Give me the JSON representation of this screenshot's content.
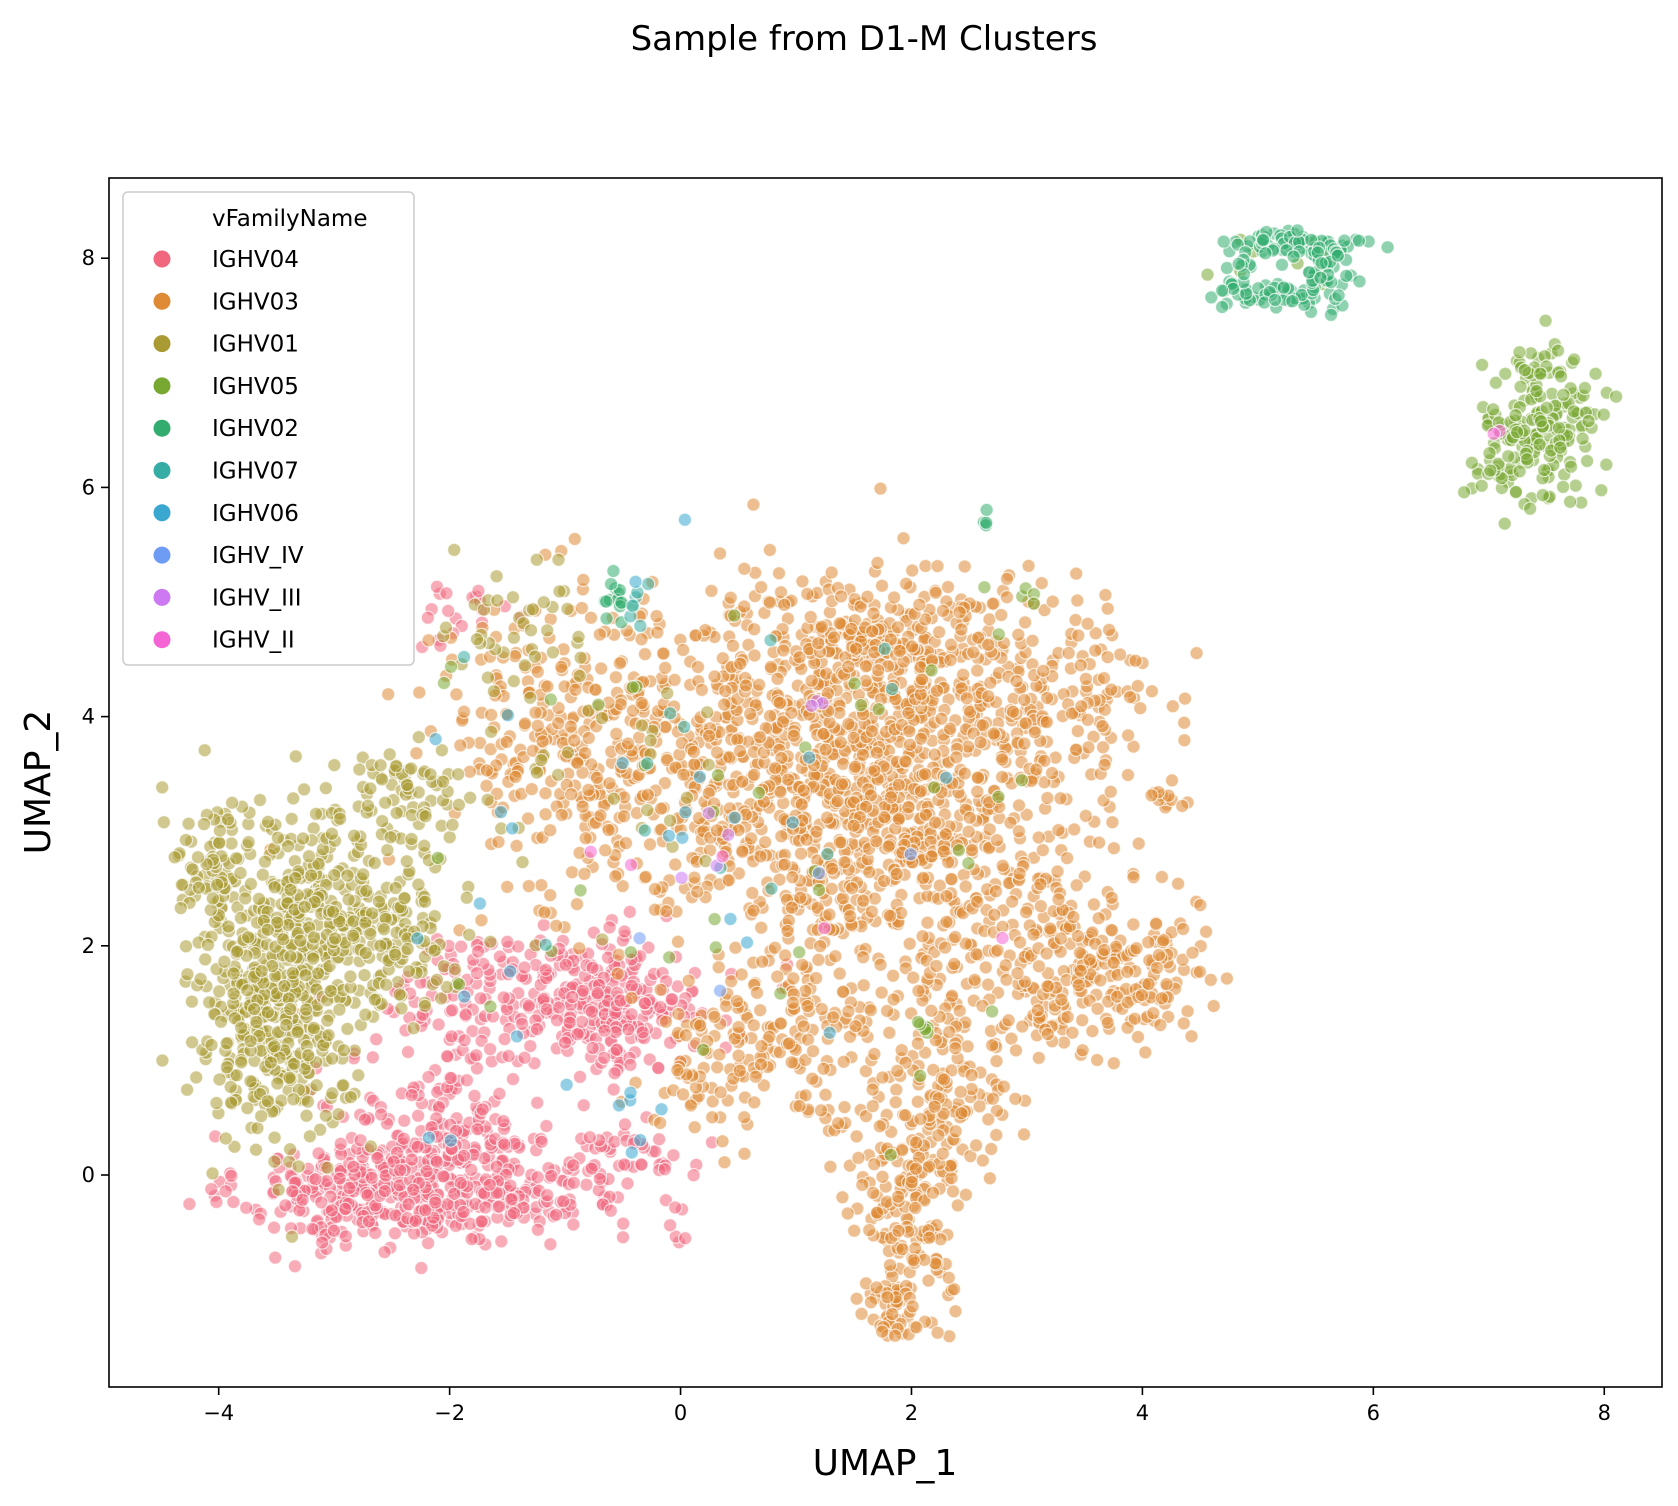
{
  "chart_data": {
    "type": "scatter",
    "title": "Sample from D1-M Clusters",
    "xlabel": "UMAP_1",
    "ylabel": "UMAP_2",
    "xlim": [
      -4.95,
      8.5
    ],
    "ylim": [
      -1.85,
      8.7
    ],
    "xticks": [
      -4,
      -2,
      0,
      2,
      4,
      6,
      8
    ],
    "yticks": [
      0,
      2,
      4,
      6,
      8
    ],
    "xtick_labels": [
      "−4",
      "−2",
      "0",
      "2",
      "4",
      "6",
      "8"
    ],
    "ytick_labels": [
      "0",
      "2",
      "4",
      "6",
      "8"
    ],
    "grid": false,
    "legend": {
      "title": "vFamilyName",
      "placement": "upper-left"
    },
    "point_opacity": 0.55,
    "point_edge_color": "#ffffff",
    "series": [
      {
        "name": "IGHV04",
        "color": "#f0677e",
        "clusters": [
          {
            "cx": -2.7,
            "cy": -0.15,
            "sx": 0.55,
            "sy": 0.25,
            "n": 300
          },
          {
            "cx": -2.0,
            "cy": 0.3,
            "sx": 0.45,
            "sy": 0.4,
            "n": 220
          },
          {
            "cx": -1.1,
            "cy": 1.55,
            "sx": 0.7,
            "sy": 0.28,
            "n": 260
          },
          {
            "cx": -0.55,
            "cy": 1.45,
            "sx": 0.3,
            "sy": 0.3,
            "n": 120
          },
          {
            "cx": -1.3,
            "cy": -0.2,
            "sx": 0.45,
            "sy": 0.15,
            "n": 110
          },
          {
            "cx": -0.5,
            "cy": 0.15,
            "sx": 0.3,
            "sy": 0.15,
            "n": 40
          },
          {
            "cx": -1.8,
            "cy": 4.95,
            "sx": 0.2,
            "sy": 0.15,
            "n": 20
          },
          {
            "cx": -0.05,
            "cy": -0.55,
            "sx": 0.05,
            "sy": 0.05,
            "n": 4
          }
        ]
      },
      {
        "name": "IGHV03",
        "color": "#df8a35",
        "clusters": [
          {
            "cx": 1.0,
            "cy": 3.5,
            "sx": 1.1,
            "sy": 0.75,
            "n": 950
          },
          {
            "cx": 2.1,
            "cy": 2.9,
            "sx": 0.7,
            "sy": 0.85,
            "n": 480
          },
          {
            "cx": 1.7,
            "cy": 4.7,
            "sx": 0.6,
            "sy": 0.3,
            "n": 220
          },
          {
            "cx": -1.0,
            "cy": 3.9,
            "sx": 0.55,
            "sy": 0.6,
            "n": 220
          },
          {
            "cx": 3.6,
            "cy": 1.7,
            "sx": 0.45,
            "sy": 0.3,
            "n": 220
          },
          {
            "cx": 3.3,
            "cy": 4.2,
            "sx": 0.45,
            "sy": 0.35,
            "n": 140
          },
          {
            "cx": 2.0,
            "cy": -0.3,
            "sx": 0.25,
            "sy": 0.45,
            "n": 170
          },
          {
            "cx": 2.3,
            "cy": 0.8,
            "sx": 0.3,
            "sy": 0.4,
            "n": 120
          },
          {
            "cx": 1.0,
            "cy": 1.2,
            "sx": 0.5,
            "sy": 0.4,
            "n": 140
          },
          {
            "cx": 0.3,
            "cy": 1.0,
            "sx": 0.3,
            "sy": 0.3,
            "n": 60
          },
          {
            "cx": 1.85,
            "cy": -1.2,
            "sx": 0.15,
            "sy": 0.12,
            "n": 40
          },
          {
            "cx": 4.2,
            "cy": 3.3,
            "sx": 0.12,
            "sy": 0.05,
            "n": 12
          },
          {
            "cx": 3.3,
            "cy": 2.3,
            "sx": 0.25,
            "sy": 0.2,
            "n": 40
          }
        ]
      },
      {
        "name": "IGHV01",
        "color": "#aa9a33",
        "clusters": [
          {
            "cx": -3.5,
            "cy": 1.5,
            "sx": 0.35,
            "sy": 0.6,
            "n": 480
          },
          {
            "cx": -3.0,
            "cy": 2.4,
            "sx": 0.5,
            "sy": 0.4,
            "n": 220
          },
          {
            "cx": -2.4,
            "cy": 3.2,
            "sx": 0.3,
            "sy": 0.25,
            "n": 80
          },
          {
            "cx": -4.1,
            "cy": 2.7,
            "sx": 0.15,
            "sy": 0.35,
            "n": 60
          },
          {
            "cx": -2.5,
            "cy": 2.0,
            "sx": 0.3,
            "sy": 0.3,
            "n": 80
          },
          {
            "cx": -1.3,
            "cy": 4.7,
            "sx": 0.35,
            "sy": 0.3,
            "n": 40
          },
          {
            "cx": -0.8,
            "cy": 3.4,
            "sx": 0.6,
            "sy": 0.6,
            "n": 30
          }
        ]
      },
      {
        "name": "IGHV05",
        "color": "#79a832",
        "clusters": [
          {
            "cx": 7.45,
            "cy": 6.5,
            "sx": 0.25,
            "sy": 0.32,
            "n": 190
          },
          {
            "cx": 7.4,
            "cy": 7.1,
            "sx": 0.08,
            "sy": 0.08,
            "n": 12
          },
          {
            "cx": 7.05,
            "cy": 6.2,
            "sx": 0.1,
            "sy": 0.2,
            "n": 10
          },
          {
            "cx": 5.2,
            "cy": 7.95,
            "sx": 0.35,
            "sy": 0.15,
            "n": 12
          },
          {
            "cx": 2.1,
            "cy": 1.25,
            "sx": 0.06,
            "sy": 0.05,
            "n": 6
          },
          {
            "cx": 3.0,
            "cy": 5.05,
            "sx": 0.1,
            "sy": 0.05,
            "n": 4
          },
          {
            "cx": 0.5,
            "cy": 3.0,
            "sx": 1.5,
            "sy": 1.2,
            "n": 40
          }
        ]
      },
      {
        "name": "IGHV02",
        "color": "#33ad6f",
        "clusters": [
          {
            "cx": 5.3,
            "cy": 8.12,
            "sx": 0.28,
            "sy": 0.06,
            "n": 70
          },
          {
            "cx": 5.15,
            "cy": 7.68,
            "sx": 0.25,
            "sy": 0.06,
            "n": 50
          },
          {
            "cx": 5.6,
            "cy": 7.9,
            "sx": 0.1,
            "sy": 0.15,
            "n": 30
          },
          {
            "cx": 4.85,
            "cy": 7.9,
            "sx": 0.08,
            "sy": 0.1,
            "n": 12
          },
          {
            "cx": 2.65,
            "cy": 5.68,
            "sx": 0.03,
            "sy": 0.06,
            "n": 4
          },
          {
            "cx": -0.55,
            "cy": 5.05,
            "sx": 0.08,
            "sy": 0.12,
            "n": 15
          }
        ]
      },
      {
        "name": "IGHV07",
        "color": "#36ada4",
        "clusters": [
          {
            "cx": -0.4,
            "cy": 5.0,
            "sx": 0.15,
            "sy": 0.12,
            "n": 6
          },
          {
            "cx": 0.5,
            "cy": 3.2,
            "sx": 1.4,
            "sy": 1.0,
            "n": 12
          }
        ]
      },
      {
        "name": "IGHV06",
        "color": "#39a7d0",
        "clusters": [
          {
            "cx": -1.5,
            "cy": 2.0,
            "sx": 1.2,
            "sy": 1.2,
            "n": 16
          },
          {
            "cx": -0.5,
            "cy": 0.5,
            "sx": 0.2,
            "sy": 0.2,
            "n": 6
          },
          {
            "cx": 0.5,
            "cy": 3.0,
            "sx": 1.0,
            "sy": 0.8,
            "n": 10
          }
        ]
      },
      {
        "name": "IGHV_IV",
        "color": "#6e9bf4",
        "clusters": [
          {
            "cx": 0.5,
            "cy": 3.0,
            "sx": 1.2,
            "sy": 1.0,
            "n": 4
          }
        ]
      },
      {
        "name": "IGHV_III",
        "color": "#cc79f2",
        "clusters": [
          {
            "cx": 1.2,
            "cy": 4.12,
            "sx": 0.05,
            "sy": 0.04,
            "n": 3
          },
          {
            "cx": 0.5,
            "cy": 3.0,
            "sx": 1.0,
            "sy": 0.8,
            "n": 4
          }
        ]
      },
      {
        "name": "IGHV_II",
        "color": "#f564d4",
        "clusters": [
          {
            "cx": 7.1,
            "cy": 6.5,
            "sx": 0.05,
            "sy": 0.05,
            "n": 2
          },
          {
            "cx": 0.0,
            "cy": 2.5,
            "sx": 1.5,
            "sy": 1.0,
            "n": 5
          }
        ]
      }
    ]
  }
}
